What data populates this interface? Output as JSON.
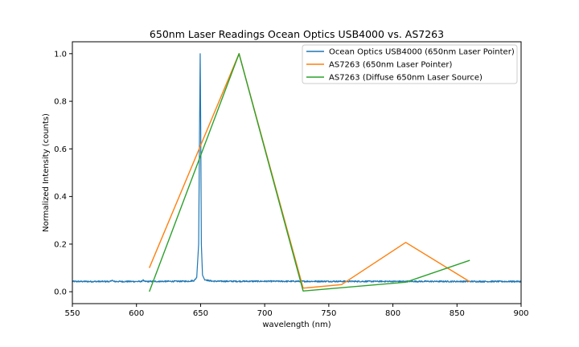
{
  "chart_data": {
    "type": "line",
    "title": "650nm Laser Readings Ocean Optics USB4000 vs. AS7263",
    "xlabel": "wavelength (nm)",
    "ylabel": "Normalized Intensity (counts)",
    "xlim": [
      550,
      900
    ],
    "ylim": [
      -0.05,
      1.05
    ],
    "x_ticks": [
      550,
      600,
      650,
      700,
      750,
      800,
      850,
      900
    ],
    "x_tick_labels": [
      "550",
      "600",
      "650",
      "700",
      "750",
      "800",
      "850",
      "900"
    ],
    "y_ticks": [
      0.0,
      0.2,
      0.4,
      0.6,
      0.8,
      1.0
    ],
    "y_tick_labels": [
      "0.0",
      "0.2",
      "0.4",
      "0.6",
      "0.8",
      "1.0"
    ],
    "grid": false,
    "legend_position": "top-right",
    "series": [
      {
        "name": "Ocean Optics USB4000 (650nm Laser Pointer)",
        "color": "#1f77b4",
        "style": "dense-spectrum",
        "baseline": 0.043,
        "points": [
          [
            550,
            0.043
          ],
          [
            580,
            0.043
          ],
          [
            581,
            0.05
          ],
          [
            582,
            0.043
          ],
          [
            604,
            0.043
          ],
          [
            605,
            0.05
          ],
          [
            606,
            0.043
          ],
          [
            640,
            0.044
          ],
          [
            645,
            0.047
          ],
          [
            647,
            0.06
          ],
          [
            648.5,
            0.2
          ],
          [
            649.3,
            0.75
          ],
          [
            649.7,
            1.0
          ],
          [
            650.1,
            0.7
          ],
          [
            650.6,
            0.2
          ],
          [
            651.5,
            0.07
          ],
          [
            653,
            0.052
          ],
          [
            656,
            0.047
          ],
          [
            660,
            0.044
          ],
          [
            900,
            0.043
          ]
        ]
      },
      {
        "name": "AS7263 (650nm Laser Pointer)",
        "color": "#ff7f0e",
        "style": "line",
        "points": [
          [
            610,
            0.1
          ],
          [
            680,
            1.0
          ],
          [
            730,
            0.015
          ],
          [
            760,
            0.03
          ],
          [
            810,
            0.207
          ],
          [
            860,
            0.042
          ]
        ]
      },
      {
        "name": "AS7263 (Diffuse 650nm Laser Source)",
        "color": "#2ca02c",
        "style": "line",
        "points": [
          [
            610,
            0.0
          ],
          [
            680,
            1.0
          ],
          [
            730,
            0.003
          ],
          [
            810,
            0.04
          ],
          [
            860,
            0.132
          ]
        ]
      }
    ]
  }
}
